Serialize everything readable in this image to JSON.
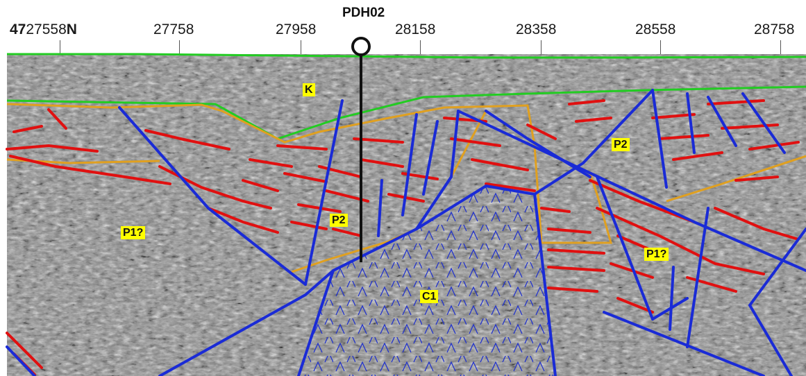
{
  "header": {
    "northing_prefix": "47",
    "northing_first": "27558",
    "northing_suffix": "N",
    "ticks": [
      "27758",
      "27958",
      "28158",
      "28358",
      "28558",
      "28758"
    ]
  },
  "well": {
    "label": "PDH02"
  },
  "units": {
    "k": "K",
    "p1_left": "P1?",
    "p2_center": "P2",
    "p2_right": "P2",
    "p1_right": "P1?",
    "c1": "C1"
  },
  "colors": {
    "surface": "#22cc22",
    "faults": "#1a2bd6",
    "reflectors": "#e01010",
    "unconformity": "#e0a020",
    "well": "#111111",
    "intrusion_symbol": "#2233cc",
    "label_fill": "#ffff00"
  }
}
